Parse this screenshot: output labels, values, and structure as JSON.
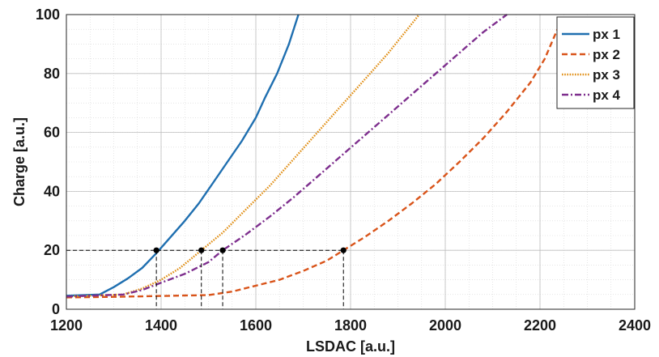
{
  "chart_data": {
    "type": "line",
    "title": "",
    "xlabel": "LSDAC [a.u.]",
    "ylabel": "Charge [a.u.]",
    "xlim": [
      1200,
      2400
    ],
    "ylim": [
      0,
      100
    ],
    "xticks": [
      1200,
      1400,
      1600,
      1800,
      2000,
      2200,
      2400
    ],
    "yticks": [
      0,
      20,
      40,
      60,
      80,
      100
    ],
    "grid": true,
    "minor_grid": true,
    "legend_position": "top-right",
    "series": [
      {
        "name": "px 1",
        "color": "#1f6fb0",
        "dash": "solid",
        "x": [
          1200,
          1270,
          1300,
          1330,
          1360,
          1390,
          1420,
          1450,
          1480,
          1510,
          1540,
          1570,
          1600,
          1620,
          1645,
          1670,
          1690
        ],
        "y": [
          4.6,
          5,
          7.5,
          10.5,
          14,
          19,
          24.5,
          30,
          36,
          43,
          50,
          57,
          65,
          72,
          80,
          90,
          100
        ]
      },
      {
        "name": "px 2",
        "color": "#d9541a",
        "dash": "dashed",
        "x": [
          1200,
          1300,
          1400,
          1500,
          1550,
          1600,
          1650,
          1700,
          1750,
          1785,
          1830,
          1880,
          1930,
          1980,
          2030,
          2080,
          2130,
          2180,
          2210,
          2250
        ],
        "y": [
          4,
          4.2,
          4.5,
          4.8,
          6,
          8,
          10,
          13,
          16.5,
          20,
          24.5,
          30,
          36,
          42.5,
          50,
          58,
          67,
          77,
          85,
          100
        ]
      },
      {
        "name": "px 3",
        "color": "#e08e14",
        "dash": "dotted",
        "x": [
          1200,
          1320,
          1360,
          1400,
          1440,
          1485,
          1530,
          1580,
          1630,
          1680,
          1730,
          1780,
          1830,
          1880,
          1930,
          1945
        ],
        "y": [
          4.3,
          5,
          7,
          10,
          14,
          20,
          26,
          34,
          42,
          51,
          60,
          69,
          78,
          87,
          97,
          100
        ]
      },
      {
        "name": "px 4",
        "color": "#7e2f8e",
        "dash": "dashdot",
        "x": [
          1200,
          1320,
          1360,
          1400,
          1450,
          1500,
          1530,
          1580,
          1630,
          1680,
          1730,
          1780,
          1830,
          1880,
          1930,
          1980,
          2030,
          2080,
          2130
        ],
        "y": [
          4.3,
          5,
          6.5,
          9,
          12,
          16,
          20,
          25.5,
          31.5,
          38,
          45,
          52,
          59,
          66,
          73,
          80,
          87,
          94,
          100
        ]
      }
    ],
    "annotations": {
      "threshold_y": 20,
      "crossings_x": [
        1390,
        1485,
        1530,
        1785
      ],
      "marker_color": "#000000"
    }
  }
}
